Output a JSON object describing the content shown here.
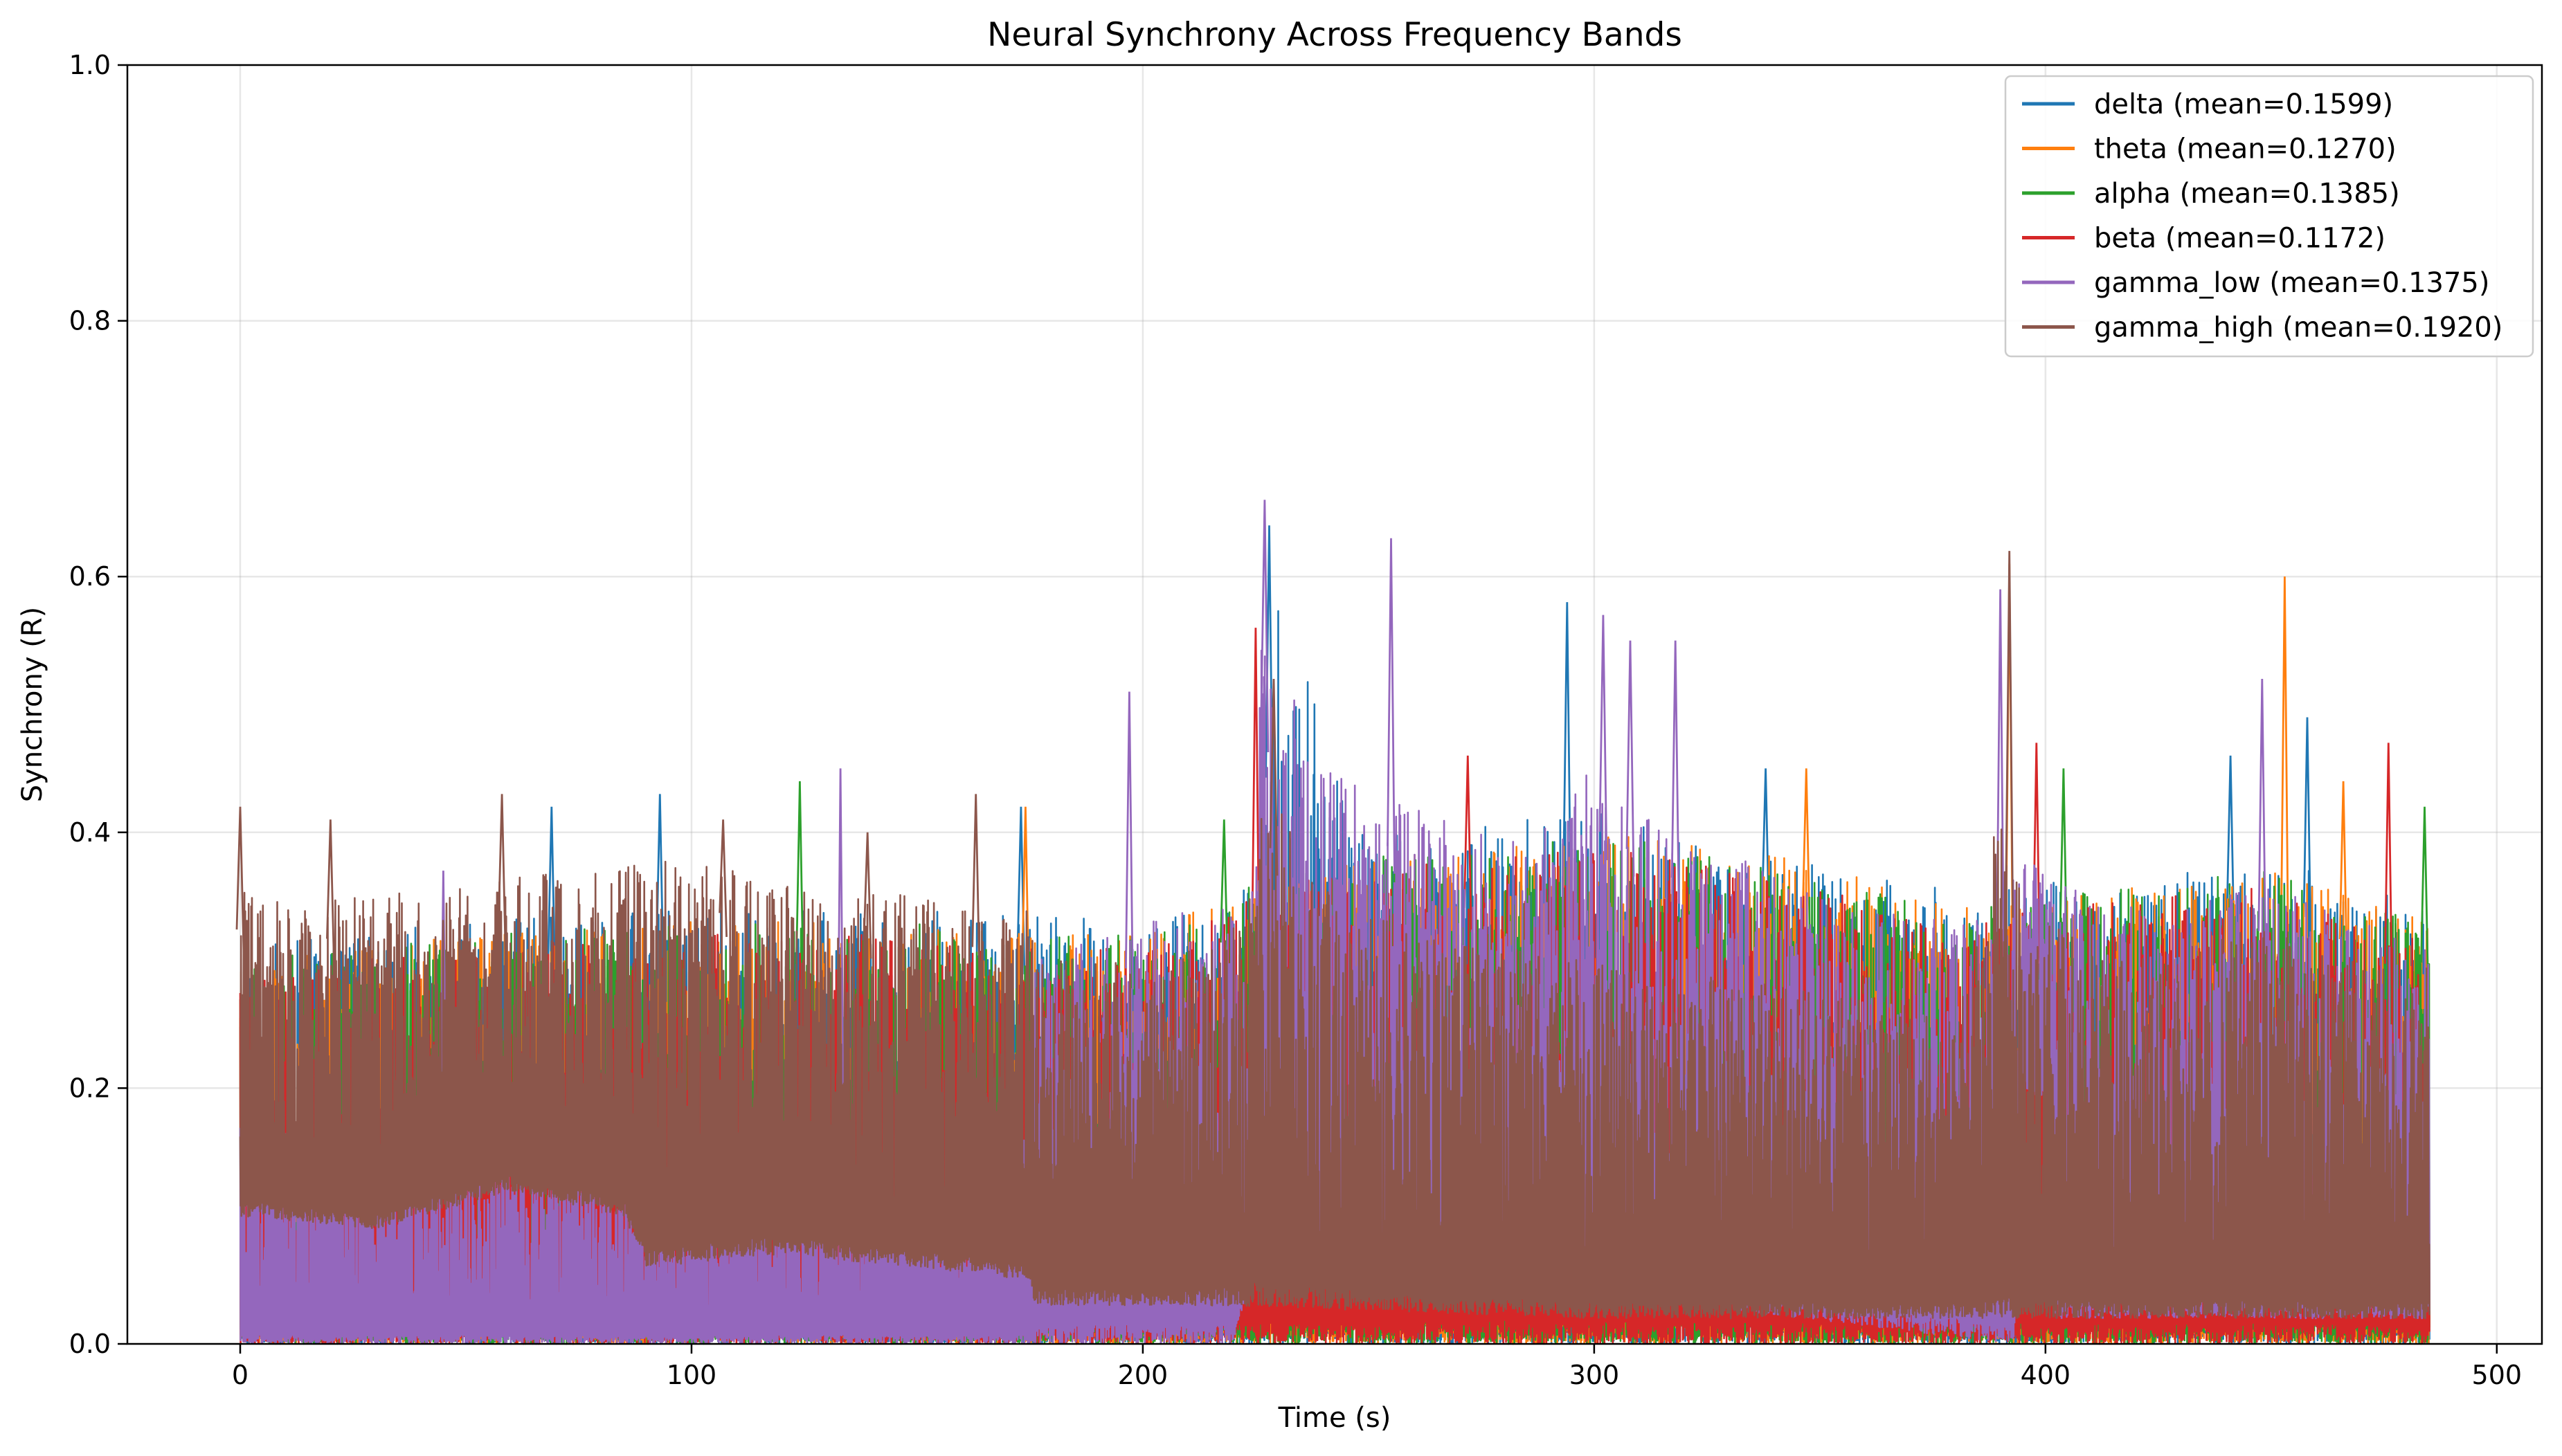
{
  "chart_data": {
    "type": "line",
    "title": "Neural Synchrony Across Frequency Bands",
    "xlabel": "Time (s)",
    "ylabel": "Synchrony (R)",
    "xlim": [
      -25,
      510
    ],
    "ylim": [
      0.0,
      1.0
    ],
    "x_range": [
      0,
      485
    ],
    "xticks": [
      0,
      100,
      200,
      300,
      400,
      500
    ],
    "xtick_labels": [
      "0",
      "100",
      "200",
      "300",
      "400",
      "500"
    ],
    "yticks": [
      0.0,
      0.2,
      0.4,
      0.6,
      0.8,
      1.0
    ],
    "ytick_labels": [
      "0.0",
      "0.2",
      "0.4",
      "0.6",
      "0.8",
      "1.0"
    ],
    "grid": true,
    "legend_position": "top-right",
    "series": [
      {
        "name": "delta (mean=0.1599)",
        "color": "#1f77b4",
        "mean": 0.1599,
        "envelope": [
          [
            0,
            0.31
          ],
          [
            50,
            0.33
          ],
          [
            100,
            0.34
          ],
          [
            150,
            0.34
          ],
          [
            175,
            0.34
          ],
          [
            200,
            0.33
          ],
          [
            225,
            0.36
          ],
          [
            230,
            0.58
          ],
          [
            250,
            0.4
          ],
          [
            300,
            0.42
          ],
          [
            340,
            0.38
          ],
          [
            380,
            0.36
          ],
          [
            400,
            0.36
          ],
          [
            450,
            0.38
          ],
          [
            485,
            0.34
          ]
        ],
        "floor": [
          [
            0,
            0.0
          ],
          [
            485,
            0.0
          ]
        ],
        "peaks": [
          [
            69,
            0.42
          ],
          [
            93,
            0.43
          ],
          [
            173,
            0.42
          ],
          [
            228,
            0.64
          ],
          [
            294,
            0.58
          ],
          [
            338,
            0.45
          ],
          [
            441,
            0.46
          ],
          [
            458,
            0.49
          ]
        ]
      },
      {
        "name": "theta (mean=0.1270)",
        "color": "#ff7f0e",
        "mean": 0.127,
        "envelope": [
          [
            0,
            0.3
          ],
          [
            50,
            0.32
          ],
          [
            100,
            0.33
          ],
          [
            150,
            0.33
          ],
          [
            175,
            0.32
          ],
          [
            200,
            0.32
          ],
          [
            225,
            0.36
          ],
          [
            250,
            0.38
          ],
          [
            300,
            0.4
          ],
          [
            345,
            0.38
          ],
          [
            380,
            0.34
          ],
          [
            400,
            0.35
          ],
          [
            450,
            0.37
          ],
          [
            485,
            0.33
          ]
        ],
        "floor": [
          [
            0,
            0.0
          ],
          [
            485,
            0.0
          ]
        ],
        "peaks": [
          [
            174,
            0.42
          ],
          [
            347,
            0.45
          ],
          [
            392,
            0.61
          ],
          [
            453,
            0.6
          ],
          [
            466,
            0.44
          ]
        ]
      },
      {
        "name": "alpha (mean=0.1385)",
        "color": "#2ca02c",
        "mean": 0.1385,
        "envelope": [
          [
            0,
            0.3
          ],
          [
            50,
            0.32
          ],
          [
            100,
            0.33
          ],
          [
            150,
            0.33
          ],
          [
            175,
            0.32
          ],
          [
            200,
            0.32
          ],
          [
            225,
            0.36
          ],
          [
            250,
            0.38
          ],
          [
            300,
            0.4
          ],
          [
            345,
            0.37
          ],
          [
            380,
            0.34
          ],
          [
            400,
            0.35
          ],
          [
            450,
            0.37
          ],
          [
            485,
            0.33
          ]
        ],
        "floor": [
          [
            0,
            0.0
          ],
          [
            485,
            0.0
          ]
        ],
        "peaks": [
          [
            124,
            0.44
          ],
          [
            218,
            0.41
          ],
          [
            404,
            0.45
          ],
          [
            484,
            0.42
          ]
        ]
      },
      {
        "name": "beta (mean=0.1172)",
        "color": "#d62728",
        "mean": 0.1172,
        "envelope": [
          [
            0,
            0.29
          ],
          [
            50,
            0.31
          ],
          [
            100,
            0.32
          ],
          [
            150,
            0.32
          ],
          [
            175,
            0.31
          ],
          [
            200,
            0.31
          ],
          [
            225,
            0.36
          ],
          [
            250,
            0.37
          ],
          [
            300,
            0.39
          ],
          [
            345,
            0.36
          ],
          [
            380,
            0.33
          ],
          [
            400,
            0.34
          ],
          [
            450,
            0.36
          ],
          [
            485,
            0.32
          ]
        ],
        "floor": [
          [
            0,
            0.0
          ],
          [
            485,
            0.0
          ]
        ],
        "peaks": [
          [
            225,
            0.56
          ],
          [
            272,
            0.46
          ],
          [
            398,
            0.47
          ],
          [
            476,
            0.47
          ]
        ]
      },
      {
        "name": "gamma_low (mean=0.1375)",
        "color": "#9467bd",
        "mean": 0.1375,
        "envelope": [
          [
            0,
            0.17
          ],
          [
            30,
            0.16
          ],
          [
            60,
            0.15
          ],
          [
            90,
            0.13
          ],
          [
            120,
            0.15
          ],
          [
            150,
            0.16
          ],
          [
            175,
            0.16
          ],
          [
            176,
            0.3
          ],
          [
            200,
            0.33
          ],
          [
            222,
            0.35
          ],
          [
            226,
            0.55
          ],
          [
            240,
            0.47
          ],
          [
            260,
            0.42
          ],
          [
            280,
            0.4
          ],
          [
            300,
            0.45
          ],
          [
            320,
            0.4
          ],
          [
            350,
            0.35
          ],
          [
            380,
            0.33
          ],
          [
            390,
            0.35
          ],
          [
            395,
            0.38
          ],
          [
            420,
            0.34
          ],
          [
            450,
            0.36
          ],
          [
            485,
            0.31
          ]
        ],
        "floor": [
          [
            0,
            0.0
          ],
          [
            175,
            0.0
          ],
          [
            176,
            0.0
          ],
          [
            220,
            0.0
          ],
          [
            226,
            0.08
          ],
          [
            240,
            0.05
          ],
          [
            300,
            0.04
          ],
          [
            393,
            0.0
          ],
          [
            395,
            0.2
          ],
          [
            400,
            0.19
          ],
          [
            402,
            0.02
          ],
          [
            485,
            0.02
          ]
        ],
        "peaks": [
          [
            45,
            0.37
          ],
          [
            133,
            0.45
          ],
          [
            197,
            0.51
          ],
          [
            227,
            0.66
          ],
          [
            255,
            0.63
          ],
          [
            302,
            0.57
          ],
          [
            308,
            0.55
          ],
          [
            318,
            0.55
          ],
          [
            390,
            0.59
          ],
          [
            448,
            0.52
          ]
        ]
      },
      {
        "name": "gamma_high (mean=0.1920)",
        "color": "#8c564b",
        "mean": 0.192,
        "envelope": [
          [
            0,
            0.36
          ],
          [
            25,
            0.35
          ],
          [
            50,
            0.36
          ],
          [
            75,
            0.37
          ],
          [
            100,
            0.38
          ],
          [
            125,
            0.36
          ],
          [
            150,
            0.35
          ],
          [
            175,
            0.34
          ],
          [
            176,
            0.31
          ],
          [
            200,
            0.3
          ],
          [
            222,
            0.33
          ],
          [
            226,
            0.45
          ],
          [
            240,
            0.36
          ],
          [
            260,
            0.32
          ],
          [
            300,
            0.3
          ],
          [
            340,
            0.28
          ],
          [
            380,
            0.26
          ],
          [
            390,
            0.42
          ],
          [
            395,
            0.35
          ],
          [
            420,
            0.3
          ],
          [
            450,
            0.33
          ],
          [
            485,
            0.28
          ]
        ],
        "floor": [
          [
            0,
            0.1
          ],
          [
            30,
            0.09
          ],
          [
            60,
            0.12
          ],
          [
            85,
            0.1
          ],
          [
            90,
            0.06
          ],
          [
            120,
            0.07
          ],
          [
            150,
            0.06
          ],
          [
            175,
            0.05
          ],
          [
            176,
            0.03
          ],
          [
            220,
            0.03
          ],
          [
            300,
            0.02
          ],
          [
            400,
            0.02
          ],
          [
            485,
            0.02
          ]
        ],
        "peaks": [
          [
            0,
            0.42
          ],
          [
            20,
            0.41
          ],
          [
            58,
            0.43
          ],
          [
            107,
            0.41
          ],
          [
            139,
            0.4
          ],
          [
            163,
            0.43
          ],
          [
            229,
            0.52
          ],
          [
            392,
            0.62
          ]
        ]
      }
    ]
  }
}
